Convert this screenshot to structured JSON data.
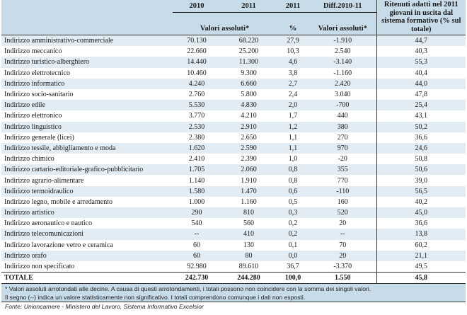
{
  "header": {
    "year_2010": "2010",
    "year_2011": "2011",
    "year_2011_pct": "2011",
    "diff": "Diff.2010-11",
    "valori_assoluti": "Valori assoluti*",
    "pct": "%",
    "valori_assoluti_diff": "Valori assoluti*",
    "ritenuti": "Ritenuti adatti nel 2011 giovani in uscita dal sistema formativo (% sul totale)"
  },
  "rows": [
    {
      "label": "Indirizzo amministrativo-commerciale",
      "v2010": "70.130",
      "v2011": "68.220",
      "pct": "27,9",
      "diff": "-1.910",
      "ritenuti": "44,7"
    },
    {
      "label": "Indirizzo meccanico",
      "v2010": "22.660",
      "v2011": "25.200",
      "pct": "10,3",
      "diff": "2.540",
      "ritenuti": "40,3"
    },
    {
      "label": "Indirizzo turistico-alberghiero",
      "v2010": "14.440",
      "v2011": "11.300",
      "pct": "4,6",
      "diff": "-3.140",
      "ritenuti": "55,3"
    },
    {
      "label": "Indirizzo elettrotecnico",
      "v2010": "10.460",
      "v2011": "9.300",
      "pct": "3,8",
      "diff": "-1.160",
      "ritenuti": "40,4"
    },
    {
      "label": "Indirizzo informatico",
      "v2010": "4.240",
      "v2011": "6.660",
      "pct": "2,7",
      "diff": "2.420",
      "ritenuti": "44,0"
    },
    {
      "label": "Indirizzo socio-sanitario",
      "v2010": "2.760",
      "v2011": "5.800",
      "pct": "2,4",
      "diff": "3.040",
      "ritenuti": "47,8"
    },
    {
      "label": "Indirizzo edile",
      "v2010": "5.530",
      "v2011": "4.830",
      "pct": "2,0",
      "diff": "-700",
      "ritenuti": "25,4"
    },
    {
      "label": "Indirizzo elettronico",
      "v2010": "3.770",
      "v2011": "4.210",
      "pct": "1,7",
      "diff": "440",
      "ritenuti": "43,1"
    },
    {
      "label": "Indirizzo linguistico",
      "v2010": "2.530",
      "v2011": "2.910",
      "pct": "1,2",
      "diff": "380",
      "ritenuti": "50,2"
    },
    {
      "label": "Indirizzo generale (licei)",
      "v2010": "2.380",
      "v2011": "2.650",
      "pct": "1,1",
      "diff": "270",
      "ritenuti": "36,6"
    },
    {
      "label": "Indirizzo tessile, abbigliamento e moda",
      "v2010": "1.620",
      "v2011": "2.590",
      "pct": "1,1",
      "diff": "970",
      "ritenuti": "24,6"
    },
    {
      "label": "Indirizzo chimico",
      "v2010": "2.410",
      "v2011": "2.390",
      "pct": "1,0",
      "diff": "-20",
      "ritenuti": "50,8"
    },
    {
      "label": "Indirizzo cartario-editoriale-grafico-pubblicitario",
      "v2010": "1.705",
      "v2011": "2.060",
      "pct": "0,8",
      "diff": "355",
      "ritenuti": "50,6"
    },
    {
      "label": "Indirizzo agrario-alimentare",
      "v2010": "1.140",
      "v2011": "1.910",
      "pct": "0,8",
      "diff": "770",
      "ritenuti": "39,0"
    },
    {
      "label": "Indirizzo termoidraulico",
      "v2010": "1.580",
      "v2011": "1.470",
      "pct": "0,6",
      "diff": "-110",
      "ritenuti": "56,5"
    },
    {
      "label": "Indirizzo legno, mobile e arredamento",
      "v2010": "1.000",
      "v2011": "1.160",
      "pct": "0,5",
      "diff": "160",
      "ritenuti": "40,2"
    },
    {
      "label": "Indirizzo artistico",
      "v2010": "290",
      "v2011": "810",
      "pct": "0,3",
      "diff": "520",
      "ritenuti": "45,0"
    },
    {
      "label": "Indirizzo aeronautico e nautico",
      "v2010": "540",
      "v2011": "560",
      "pct": "0,2",
      "diff": "20",
      "ritenuti": "36,6"
    },
    {
      "label": "Indirizzo telecomunicazioni",
      "v2010": "--",
      "v2011": "410",
      "pct": "0,2",
      "diff": "--",
      "ritenuti": "13,8"
    },
    {
      "label": "Indirizzo lavorazione vetro e ceramica",
      "v2010": "60",
      "v2011": "130",
      "pct": "0,1",
      "diff": "70",
      "ritenuti": "60,2"
    },
    {
      "label": "Indirizzo orafo",
      "v2010": "60",
      "v2011": "80",
      "pct": "0,0",
      "diff": "20",
      "ritenuti": "21,1"
    },
    {
      "label": "Indirizzo non specificato",
      "v2010": "92.980",
      "v2011": "89.610",
      "pct": "36,7",
      "diff": "-3.370",
      "ritenuti": "49,5"
    }
  ],
  "total": {
    "label": "TOTALE",
    "v2010": "242.730",
    "v2011": "244.280",
    "pct": "100,0",
    "diff": "1.550",
    "ritenuti": "45,8"
  },
  "notes": [
    "* Valori assoluti arrotondati alle decine. A causa di questi arrotondamenti, i totali possono non coincidere con la somma dei singoli valori.",
    "Il segno (--) indica un valore statisticamente non significativo. I totali comprendono comunque i dati non esposti."
  ],
  "source": "Fonte: Unioncamere - Ministero del Lavoro, Sistema Informativo Excelsior"
}
